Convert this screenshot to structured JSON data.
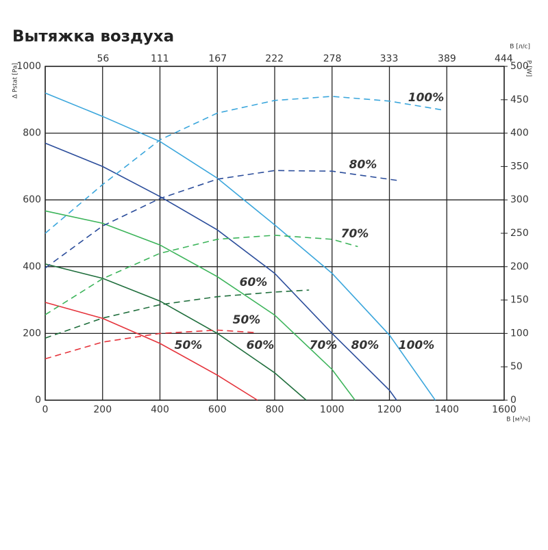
{
  "chart_data": {
    "type": "line",
    "title": "Вытяжка воздуха",
    "xlabel": "B [м³/ч]",
    "ylabel": "Δ Pstat [Pa]",
    "y2label": "P [W]",
    "x2label": "B [л/с]",
    "xlim": [
      0,
      1600
    ],
    "xticks": [
      0,
      200,
      400,
      600,
      800,
      1000,
      1200,
      1400,
      1600
    ],
    "ylim": [
      0,
      1000
    ],
    "yticks": [
      0,
      200,
      400,
      600,
      800,
      1000
    ],
    "y2lim": [
      0,
      500
    ],
    "y2ticks": [
      0,
      50,
      100,
      150,
      200,
      250,
      300,
      350,
      400,
      450,
      500
    ],
    "x2lim": [
      0,
      444.44
    ],
    "x2ticks": [
      56,
      111,
      167,
      222,
      278,
      333,
      389,
      444
    ],
    "grid": true,
    "series": [
      {
        "name": "100%",
        "color": "#3aa6dc",
        "x": [
          0,
          200,
          400,
          600,
          800,
          1000,
          1200,
          1360
        ],
        "values": [
          920,
          850,
          775,
          665,
          525,
          380,
          195,
          0
        ]
      },
      {
        "name": "80%",
        "color": "#2b4d9b",
        "x": [
          0,
          200,
          400,
          600,
          800,
          1000,
          1200,
          1225
        ],
        "values": [
          770,
          700,
          610,
          510,
          380,
          200,
          30,
          0
        ]
      },
      {
        "name": "70%",
        "color": "#3cb45a",
        "x": [
          0,
          200,
          400,
          600,
          800,
          1000,
          1080
        ],
        "values": [
          567,
          530,
          465,
          370,
          255,
          92,
          0
        ]
      },
      {
        "name": "60%",
        "color": "#1f6e3c",
        "x": [
          0,
          200,
          400,
          600,
          800,
          910
        ],
        "values": [
          408,
          365,
          297,
          200,
          82,
          0
        ]
      },
      {
        "name": "50%",
        "color": "#e5333b",
        "x": [
          0,
          200,
          400,
          600,
          740
        ],
        "values": [
          293,
          245,
          170,
          75,
          0
        ]
      },
      {
        "name": "100%",
        "color": "#3aa6dc",
        "axis": "y2",
        "x": [
          0,
          200,
          400,
          600,
          800,
          1000,
          1200,
          1380
        ],
        "values": [
          250,
          323,
          390,
          430,
          449,
          455,
          448,
          435
        ]
      },
      {
        "name": "80%",
        "color": "#2b4d9b",
        "axis": "y2",
        "x": [
          0,
          200,
          400,
          600,
          800,
          1000,
          1230
        ],
        "values": [
          198,
          261,
          302,
          331,
          344,
          343,
          329
        ]
      },
      {
        "name": "70%",
        "color": "#3cb45a",
        "axis": "y2",
        "x": [
          0,
          200,
          400,
          600,
          800,
          1000,
          1090
        ],
        "values": [
          128,
          182,
          220,
          241,
          247,
          241,
          230
        ]
      },
      {
        "name": "60%",
        "color": "#1f6e3c",
        "axis": "y2",
        "x": [
          0,
          200,
          400,
          600,
          800,
          920
        ],
        "values": [
          93,
          123,
          143,
          155,
          162,
          165
        ]
      },
      {
        "name": "50%",
        "color": "#e5333b",
        "axis": "y2",
        "x": [
          0,
          200,
          400,
          600,
          740
        ],
        "values": [
          62,
          87,
          100,
          105,
          101
        ]
      }
    ]
  }
}
